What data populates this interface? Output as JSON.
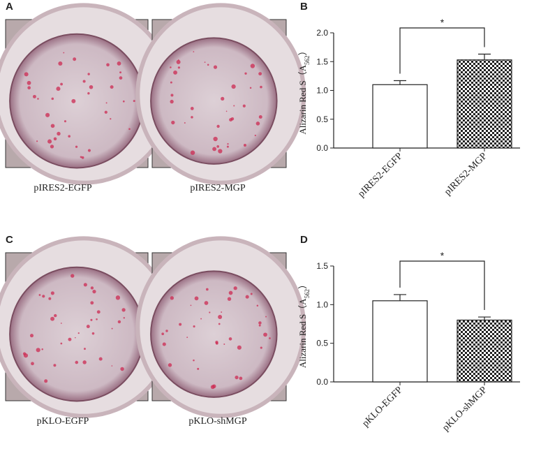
{
  "panels": [
    {
      "letter": "A",
      "labels": [
        "pIRES2-EGFP",
        "pIRES2-MGP"
      ]
    },
    {
      "letter": "B"
    },
    {
      "letter": "C",
      "labels": [
        "pKLO-EGFP",
        "pKLO-shMGP"
      ]
    },
    {
      "letter": "D"
    }
  ],
  "chart_data": [
    {
      "type": "bar",
      "ylabel": [
        "Alizarin Red S（A",
        "562",
        "）"
      ],
      "categories": [
        "pIRES2-EGFP",
        "pIRES2-MGP"
      ],
      "values": [
        1.1,
        1.53
      ],
      "errors": [
        0.07,
        0.1
      ],
      "fills": [
        "#ffffff",
        "checker"
      ],
      "annotation": "*",
      "ylim": [
        0,
        2.0
      ],
      "yticks": [
        {
          "value": 0,
          "label": "0.0"
        },
        {
          "value": 0.5,
          "label": "0.5"
        },
        {
          "value": 1,
          "label": "1.0"
        },
        {
          "value": 1.5,
          "label": "1.5"
        },
        {
          "value": 2,
          "label": "2.0"
        }
      ]
    },
    {
      "type": "bar",
      "ylabel": [
        "Alizarin Red S（A",
        "562",
        "）"
      ],
      "categories": [
        "pKLO-EGFP",
        "pKLO-shMGP"
      ],
      "values": [
        1.05,
        0.8
      ],
      "errors": [
        0.08,
        0.04
      ],
      "fills": [
        "#ffffff",
        "checker"
      ],
      "annotation": "*",
      "ylim": [
        0,
        1.5
      ],
      "yticks": [
        {
          "value": 0,
          "label": "0.0"
        },
        {
          "value": 0.5,
          "label": "0.5"
        },
        {
          "value": 1,
          "label": "1.0"
        },
        {
          "value": 1.5,
          "label": "1.5"
        }
      ]
    }
  ]
}
